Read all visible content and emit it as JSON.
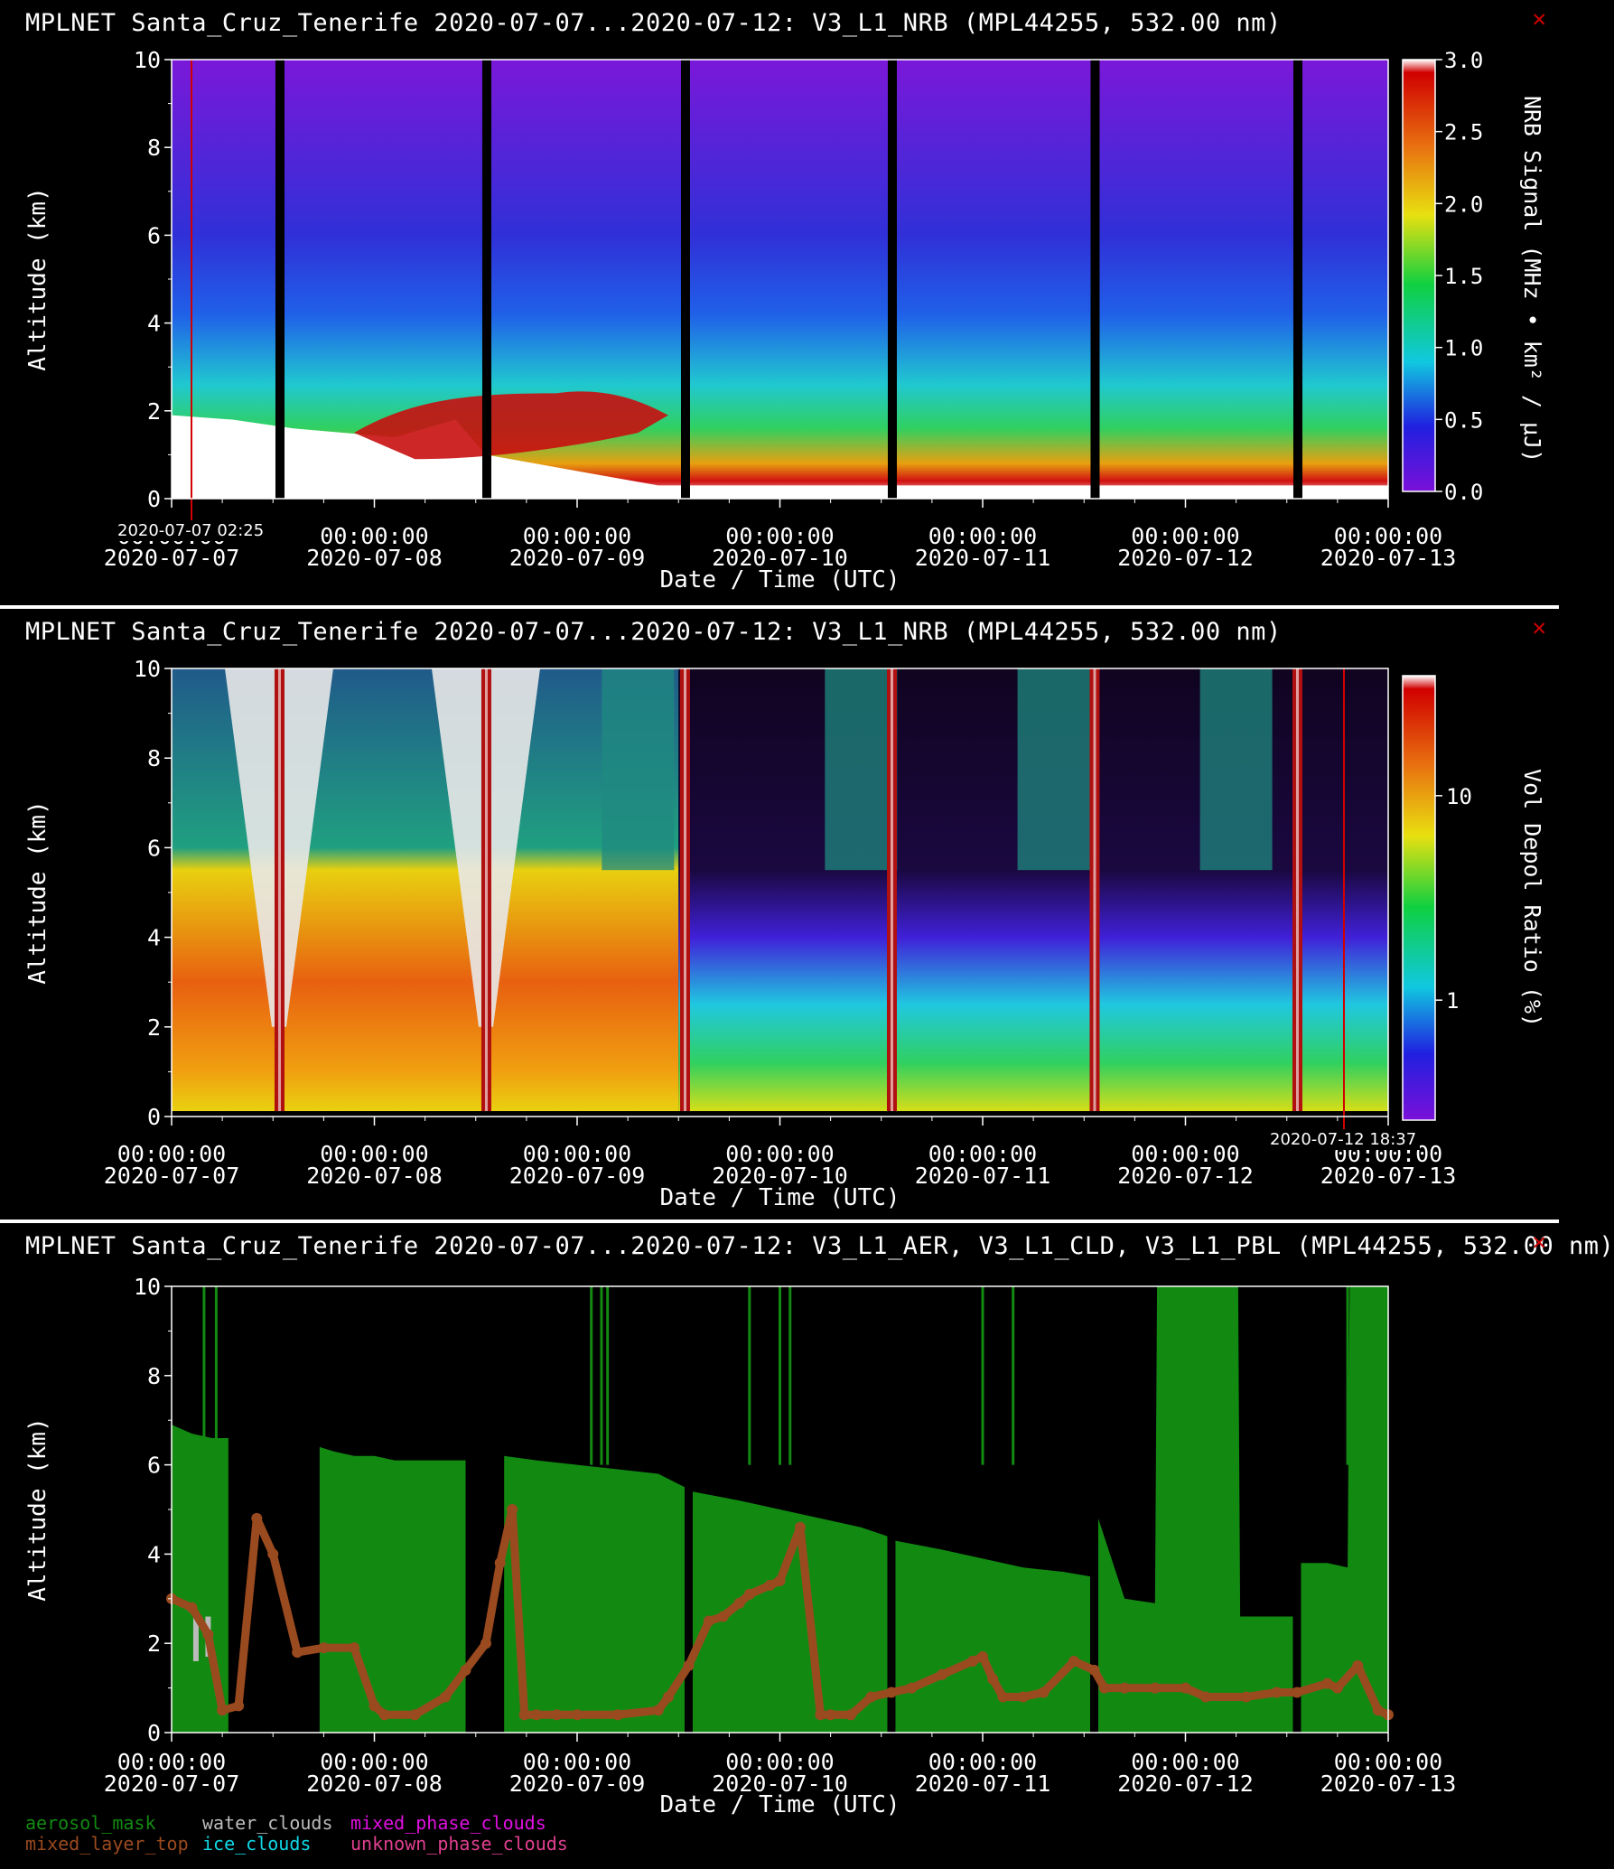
{
  "colors": {
    "aerosol_mask": "#128a12",
    "water_clouds": "#bbbbbb",
    "mixed_phase_clouds": "#e010e0",
    "mixed_layer_top": "#9a4a1f",
    "ice_clouds": "#10d8e8",
    "unknown_phase_clouds": "#e04090",
    "close_icon": "#cc0000"
  },
  "panels": [
    {
      "title": "MPLNET Santa_Cruz_Tenerife 2020-07-07...2020-07-12:  V3_L1_NRB  (MPL44255, 532.00 nm)",
      "close_icon": "close-icon",
      "cursor_label": "2020-07-07 02:25",
      "colorbar": {
        "label": "NRB Signal (MHz • km² / μJ)",
        "ticks": [
          "0.0",
          "0.5",
          "1.0",
          "1.5",
          "2.0",
          "2.5",
          "3.0"
        ],
        "range": [
          0,
          3.0
        ]
      }
    },
    {
      "title": "MPLNET Santa_Cruz_Tenerife 2020-07-07...2020-07-12:  V3_L1_NRB  (MPL44255, 532.00 nm)",
      "close_icon": "close-icon",
      "cursor_label": "2020-07-12 18:37",
      "colorbar": {
        "label": "Vol Depol Ratio (%)",
        "ticks": [
          "1",
          "10"
        ],
        "scale": "log"
      }
    },
    {
      "title": "MPLNET Santa_Cruz_Tenerife 2020-07-07...2020-07-12:  V3_L1_AER, V3_L1_CLD, V3_L1_PBL  (MPL44255, 532.00 nm)",
      "close_icon": "close-icon"
    }
  ],
  "legend": {
    "row1": [
      "aerosol_mask",
      "water_clouds",
      "mixed_phase_clouds"
    ],
    "row2": [
      "mixed_layer_top",
      "ice_clouds",
      "unknown_phase_clouds"
    ]
  },
  "chart_data": [
    {
      "type": "heatmap",
      "title": "MPLNET Santa_Cruz_Tenerife 2020-07-07...2020-07-12:  V3_L1_NRB  (MPL44255, 532.00 nm)",
      "xlabel": "Date / Time (UTC)",
      "ylabel": "Altitude (km)",
      "x_ticks": [
        {
          "time": "00:00:00",
          "date": "2020-07-07"
        },
        {
          "time": "00:00:00",
          "date": "2020-07-08"
        },
        {
          "time": "00:00:00",
          "date": "2020-07-09"
        },
        {
          "time": "00:00:00",
          "date": "2020-07-10"
        },
        {
          "time": "00:00:00",
          "date": "2020-07-11"
        },
        {
          "time": "00:00:00",
          "date": "2020-07-12"
        },
        {
          "time": "00:00:00",
          "date": "2020-07-13"
        }
      ],
      "y_ticks": [
        "0",
        "2",
        "4",
        "6",
        "8",
        "10"
      ],
      "ylim": [
        0,
        10
      ],
      "xlim_days": [
        0,
        6
      ],
      "colorbar_label": "NRB Signal (MHz • km² / μJ)",
      "colorbar_range": [
        0,
        3.0
      ],
      "data_gaps_days": [
        0.53,
        1.55,
        2.53,
        3.55,
        4.55,
        5.55
      ]
    },
    {
      "type": "heatmap",
      "title": "MPLNET Santa_Cruz_Tenerife 2020-07-07...2020-07-12:  V3_L1_NRB  (MPL44255, 532.00 nm)",
      "xlabel": "Date / Time (UTC)",
      "ylabel": "Altitude (km)",
      "x_ticks": [
        {
          "time": "00:00:00",
          "date": "2020-07-07"
        },
        {
          "time": "00:00:00",
          "date": "2020-07-08"
        },
        {
          "time": "00:00:00",
          "date": "2020-07-09"
        },
        {
          "time": "00:00:00",
          "date": "2020-07-10"
        },
        {
          "time": "00:00:00",
          "date": "2020-07-11"
        },
        {
          "time": "00:00:00",
          "date": "2020-07-12"
        },
        {
          "time": "00:00:00",
          "date": "2020-07-13"
        }
      ],
      "y_ticks": [
        "0",
        "2",
        "4",
        "6",
        "8",
        "10"
      ],
      "ylim": [
        0,
        10
      ],
      "xlim_days": [
        0,
        6
      ],
      "colorbar_label": "Vol Depol Ratio (%)",
      "colorbar_ticks": [
        "1",
        "10"
      ],
      "colorbar_scale": "log",
      "data_gaps_days": [
        0.53,
        1.55,
        2.53,
        3.55,
        4.55,
        5.55
      ]
    },
    {
      "type": "area",
      "title": "MPLNET Santa_Cruz_Tenerife 2020-07-07...2020-07-12:  V3_L1_AER, V3_L1_CLD, V3_L1_PBL  (MPL44255, 532.00 nm)",
      "xlabel": "Date / Time (UTC)",
      "ylabel": "Altitude (km)",
      "x_ticks": [
        {
          "time": "00:00:00",
          "date": "2020-07-07"
        },
        {
          "time": "00:00:00",
          "date": "2020-07-08"
        },
        {
          "time": "00:00:00",
          "date": "2020-07-09"
        },
        {
          "time": "00:00:00",
          "date": "2020-07-10"
        },
        {
          "time": "00:00:00",
          "date": "2020-07-11"
        },
        {
          "time": "00:00:00",
          "date": "2020-07-12"
        },
        {
          "time": "00:00:00",
          "date": "2020-07-13"
        }
      ],
      "y_ticks": [
        "0",
        "2",
        "4",
        "6",
        "8",
        "10"
      ],
      "ylim": [
        0,
        10
      ],
      "xlim_days": [
        0,
        6
      ],
      "series": [
        {
          "name": "aerosol_mask",
          "segments": [
            {
              "x": [
                0.0,
                0.05,
                0.1,
                0.2,
                0.28
              ],
              "y": [
                6.9,
                6.8,
                6.7,
                6.6,
                6.6
              ]
            },
            {
              "x": [
                0.73,
                0.8,
                0.9,
                1.0,
                1.1,
                1.3,
                1.45
              ],
              "y": [
                6.4,
                6.3,
                6.2,
                6.2,
                6.1,
                6.1,
                6.1
              ]
            },
            {
              "x": [
                1.64,
                1.8,
                2.0,
                2.2,
                2.4,
                2.53
              ],
              "y": [
                6.2,
                6.1,
                6.0,
                5.9,
                5.8,
                5.5
              ]
            },
            {
              "x": [
                2.57,
                2.8,
                3.0,
                3.2,
                3.4,
                3.53
              ],
              "y": [
                5.4,
                5.2,
                5.0,
                4.8,
                4.6,
                4.4
              ]
            },
            {
              "x": [
                3.57,
                3.8,
                4.0,
                4.2,
                4.4,
                4.53
              ],
              "y": [
                4.3,
                4.1,
                3.9,
                3.7,
                3.6,
                3.5
              ]
            },
            {
              "x": [
                4.57,
                4.7,
                4.85,
                4.86,
                5.0,
                5.2,
                5.26,
                5.27,
                5.4,
                5.53
              ],
              "y": [
                4.8,
                3.0,
                2.9,
                10.0,
                10.0,
                10.0,
                10.0,
                2.6,
                2.6,
                2.6
              ]
            },
            {
              "x": [
                5.57,
                5.7,
                5.8,
                5.81,
                6.0
              ],
              "y": [
                3.8,
                3.8,
                3.7,
                10.0,
                10.0
              ]
            }
          ]
        },
        {
          "name": "mixed_layer_top",
          "x": [
            0.0,
            0.1,
            0.18,
            0.25,
            0.33,
            0.42,
            0.5,
            0.62,
            0.75,
            0.9,
            1.0,
            1.05,
            1.2,
            1.35,
            1.45,
            1.55,
            1.62,
            1.68,
            1.74,
            1.8,
            1.9,
            2.0,
            2.2,
            2.4,
            2.45,
            2.55,
            2.65,
            2.72,
            2.8,
            2.85,
            2.95,
            3.0,
            3.1,
            3.2,
            3.25,
            3.35,
            3.45,
            3.55,
            3.65,
            3.8,
            3.95,
            4.0,
            4.05,
            4.1,
            4.2,
            4.3,
            4.45,
            4.55,
            4.6,
            4.7,
            4.85,
            5.0,
            5.1,
            5.3,
            5.45,
            5.55,
            5.7,
            5.75,
            5.85,
            5.95,
            6.0
          ],
          "y": [
            3.0,
            2.8,
            2.2,
            0.5,
            0.6,
            4.8,
            4.0,
            1.8,
            1.9,
            1.9,
            0.6,
            0.4,
            0.4,
            0.8,
            1.4,
            2.0,
            3.8,
            5.0,
            0.4,
            0.4,
            0.4,
            0.4,
            0.4,
            0.5,
            0.8,
            1.5,
            2.5,
            2.6,
            2.9,
            3.1,
            3.3,
            3.4,
            4.6,
            0.4,
            0.4,
            0.4,
            0.8,
            0.9,
            1.0,
            1.3,
            1.6,
            1.7,
            1.2,
            0.8,
            0.8,
            0.9,
            1.6,
            1.4,
            1.0,
            1.0,
            1.0,
            1.0,
            0.8,
            0.8,
            0.9,
            0.9,
            1.1,
            1.0,
            1.5,
            0.5,
            0.4
          ]
        },
        {
          "name": "water_clouds",
          "x": [
            0.12,
            0.18
          ],
          "y": [
            [
              1.6,
              2.6
            ],
            [
              1.7,
              2.6
            ]
          ]
        }
      ]
    }
  ]
}
